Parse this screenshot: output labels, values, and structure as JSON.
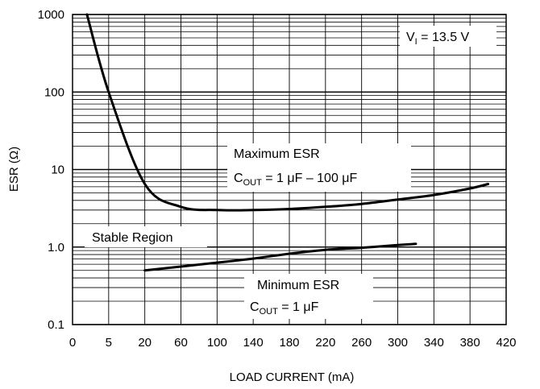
{
  "chart_data": {
    "type": "line",
    "title": "",
    "xlabel": "LOAD CURRENT (mA)",
    "ylabel": "ESR (Ω)",
    "y_scale": "log",
    "ylim": [
      0.1,
      1000
    ],
    "grid": true,
    "x_tick_labels": [
      "0",
      "5",
      "20",
      "60",
      "100",
      "140",
      "180",
      "220",
      "260",
      "300",
      "340",
      "380",
      "420"
    ],
    "y_tick_labels": [
      "0.1",
      "1.0",
      "10",
      "100",
      "1000"
    ],
    "series": [
      {
        "name": "Maximum ESR",
        "x": [
          "2",
          "5",
          "20",
          "60",
          "100",
          "140",
          "180",
          "220",
          "260",
          "300",
          "340",
          "380",
          "400"
        ],
        "y": [
          1000,
          100,
          6.5,
          3.3,
          3.0,
          3.0,
          3.1,
          3.3,
          3.6,
          4.1,
          4.7,
          5.7,
          6.5
        ]
      },
      {
        "name": "Minimum ESR",
        "x": [
          "20",
          "60",
          "100",
          "140",
          "180",
          "220",
          "260",
          "300",
          "320"
        ],
        "y": [
          0.5,
          0.56,
          0.63,
          0.71,
          0.82,
          0.92,
          0.98,
          1.06,
          1.1
        ]
      }
    ],
    "annotations": {
      "vi": {
        "main": "V",
        "sub": "I",
        "rest": " = 13.5 V"
      },
      "max": {
        "line1": "Maximum ESR",
        "c": "C",
        "c_sub": "OUT",
        "c_rest": " = 1 μF – 100 μF"
      },
      "stable": "Stable Region",
      "min": {
        "line1": "Minimum ESR",
        "c": "C",
        "c_sub": "OUT",
        "c_rest": " = 1 μF"
      }
    }
  }
}
